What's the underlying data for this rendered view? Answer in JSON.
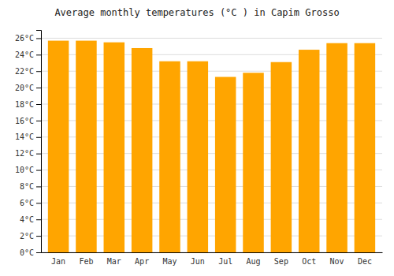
{
  "chart_data": {
    "type": "bar",
    "title": "Average monthly temperatures (°C ) in Capim Grosso",
    "categories": [
      "Jan",
      "Feb",
      "Mar",
      "Apr",
      "May",
      "Jun",
      "Jul",
      "Aug",
      "Sep",
      "Oct",
      "Nov",
      "Dec"
    ],
    "values": [
      25.7,
      25.7,
      25.5,
      24.8,
      23.2,
      23.2,
      21.3,
      21.8,
      23.1,
      24.6,
      25.4,
      25.4
    ],
    "color": "#FFA500",
    "ylim": [
      0,
      27
    ],
    "yticks": [
      {
        "value": 0,
        "label": "0°C"
      },
      {
        "value": 2,
        "label": "2°C"
      },
      {
        "value": 4,
        "label": "4°C"
      },
      {
        "value": 6,
        "label": "6°C"
      },
      {
        "value": 8,
        "label": "8°C"
      },
      {
        "value": 10,
        "label": "10°C"
      },
      {
        "value": 12,
        "label": "12°C"
      },
      {
        "value": 14,
        "label": "14°C"
      },
      {
        "value": 16,
        "label": "16°C"
      },
      {
        "value": 18,
        "label": "18°C"
      },
      {
        "value": 20,
        "label": "20°C"
      },
      {
        "value": 22,
        "label": "22°C"
      },
      {
        "value": 24,
        "label": "24°C"
      },
      {
        "value": 26,
        "label": "26°C"
      }
    ],
    "grid": true
  }
}
